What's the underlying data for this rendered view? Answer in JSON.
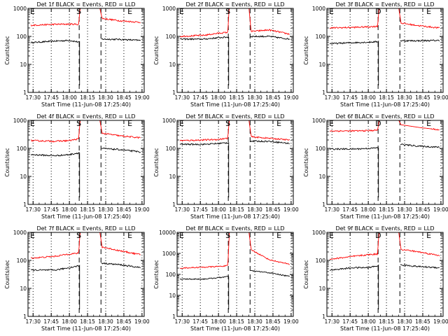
{
  "figure": {
    "ylabel": "Counts/sec",
    "xlabel": "Start Time (11-Jun-08 17:25:40)",
    "x_tick_labels": [
      "17:30",
      "17:45",
      "18:00",
      "18:15",
      "18:30",
      "18:45",
      "19:00"
    ],
    "series_colors": {
      "events": "#000000",
      "lld": "#ff0000"
    }
  },
  "chart_data": [
    {
      "type": "line",
      "title": "Det 1f BLACK = Events, RED = LLD",
      "ylim": [
        1,
        1000
      ],
      "yscale": "log",
      "y_tick_labels": [
        "1",
        "10",
        "100",
        "1000"
      ],
      "markers": {
        "E1": "E",
        "S": "S",
        "E2": "E"
      },
      "series": [
        {
          "name": "Events",
          "pre": [
            [
              17.47,
              60
            ],
            [
              17.8,
              68
            ],
            [
              18.0,
              72
            ],
            [
              18.14,
              62
            ]
          ],
          "post": [
            [
              18.44,
              80
            ],
            [
              18.7,
              78
            ],
            [
              18.98,
              72
            ]
          ]
        },
        {
          "name": "LLD",
          "pre": [
            [
              17.47,
              250
            ],
            [
              17.8,
              270
            ],
            [
              18.0,
              275
            ],
            [
              18.13,
              270
            ],
            [
              18.14,
              700
            ],
            [
              18.15,
              1000
            ]
          ],
          "post": [
            [
              18.42,
              1000
            ],
            [
              18.45,
              440
            ],
            [
              18.7,
              360
            ],
            [
              18.98,
              320
            ]
          ]
        }
      ]
    },
    {
      "type": "line",
      "title": "Det 2f BLACK = Events, RED = LLD",
      "ylim": [
        1,
        1000
      ],
      "yscale": "log",
      "y_tick_labels": [
        "1",
        "10",
        "100",
        "1000"
      ],
      "markers": {
        "E1": "E",
        "S": "S",
        "E2": "E"
      },
      "series": [
        {
          "name": "Events",
          "pre": [
            [
              17.47,
              80
            ],
            [
              17.8,
              80
            ],
            [
              18.0,
              90
            ],
            [
              18.14,
              95
            ]
          ],
          "post": [
            [
              18.44,
              100
            ],
            [
              18.7,
              100
            ],
            [
              18.98,
              80
            ]
          ]
        },
        {
          "name": "LLD",
          "pre": [
            [
              17.47,
              100
            ],
            [
              17.8,
              110
            ],
            [
              18.0,
              130
            ],
            [
              18.13,
              140
            ],
            [
              18.14,
              600
            ],
            [
              18.15,
              1000
            ]
          ],
          "post": [
            [
              18.42,
              1000
            ],
            [
              18.45,
              150
            ],
            [
              18.7,
              170
            ],
            [
              18.98,
              120
            ]
          ]
        }
      ]
    },
    {
      "type": "line",
      "title": "Det 3f BLACK = Events, RED = LLD",
      "ylim": [
        1,
        1000
      ],
      "yscale": "log",
      "y_tick_labels": [
        "1",
        "10",
        "100",
        "1000"
      ],
      "markers": {
        "E1": "E",
        "S": "D",
        "E2": "E"
      },
      "series": [
        {
          "name": "Events",
          "pre": [
            [
              17.47,
              55
            ],
            [
              17.8,
              60
            ],
            [
              18.0,
              62
            ],
            [
              18.14,
              65
            ]
          ],
          "post": [
            [
              18.44,
              70
            ],
            [
              18.7,
              70
            ],
            [
              18.98,
              72
            ]
          ]
        },
        {
          "name": "LLD",
          "pre": [
            [
              17.47,
              200
            ],
            [
              17.8,
              210
            ],
            [
              18.0,
              220
            ],
            [
              18.13,
              230
            ],
            [
              18.14,
              600
            ],
            [
              18.15,
              1000
            ]
          ],
          "post": [
            [
              18.42,
              1000
            ],
            [
              18.45,
              300
            ],
            [
              18.7,
              240
            ],
            [
              18.98,
              200
            ]
          ]
        }
      ]
    },
    {
      "type": "line",
      "title": "Det 4f BLACK = Events, RED = LLD",
      "ylim": [
        1,
        1000
      ],
      "yscale": "log",
      "y_tick_labels": [
        "1",
        "10",
        "100",
        "1000"
      ],
      "markers": {
        "E1": "E",
        "S": "S",
        "E2": "E"
      },
      "series": [
        {
          "name": "Events",
          "pre": [
            [
              17.47,
              60
            ],
            [
              17.8,
              55
            ],
            [
              18.0,
              60
            ],
            [
              18.14,
              70
            ]
          ],
          "post": [
            [
              18.44,
              100
            ],
            [
              18.7,
              90
            ],
            [
              18.98,
              75
            ]
          ]
        },
        {
          "name": "LLD",
          "pre": [
            [
              17.47,
              190
            ],
            [
              17.8,
              180
            ],
            [
              18.0,
              190
            ],
            [
              18.13,
              220
            ],
            [
              18.14,
              600
            ],
            [
              18.15,
              1000
            ]
          ],
          "post": [
            [
              18.42,
              1000
            ],
            [
              18.45,
              350
            ],
            [
              18.7,
              280
            ],
            [
              18.98,
              240
            ]
          ]
        }
      ]
    },
    {
      "type": "line",
      "title": "Det 5f BLACK = Events, RED = LLD",
      "ylim": [
        1,
        1000
      ],
      "yscale": "log",
      "y_tick_labels": [
        "1",
        "10",
        "100",
        "1000"
      ],
      "markers": {
        "E1": "E",
        "S": "S",
        "E2": "E"
      },
      "series": [
        {
          "name": "Events",
          "pre": [
            [
              17.47,
              140
            ],
            [
              17.8,
              140
            ],
            [
              18.0,
              150
            ],
            [
              18.14,
              160
            ]
          ],
          "post": [
            [
              18.44,
              180
            ],
            [
              18.7,
              180
            ],
            [
              18.98,
              150
            ]
          ]
        },
        {
          "name": "LLD",
          "pre": [
            [
              17.47,
              190
            ],
            [
              17.8,
              200
            ],
            [
              18.0,
              210
            ],
            [
              18.13,
              230
            ],
            [
              18.14,
              600
            ],
            [
              18.15,
              1000
            ]
          ],
          "post": [
            [
              18.42,
              1000
            ],
            [
              18.45,
              260
            ],
            [
              18.7,
              230
            ],
            [
              18.98,
              200
            ]
          ]
        }
      ]
    },
    {
      "type": "line",
      "title": "Det 6f BLACK = Events, RED = LLD",
      "ylim": [
        1,
        1000
      ],
      "yscale": "log",
      "y_tick_labels": [
        "1",
        "10",
        "100",
        "1000"
      ],
      "markers": {
        "E1": "E",
        "S": "D",
        "E2": "E"
      },
      "series": [
        {
          "name": "Events",
          "pre": [
            [
              17.47,
              95
            ],
            [
              17.8,
              95
            ],
            [
              18.0,
              100
            ],
            [
              18.14,
              105
            ]
          ],
          "post": [
            [
              18.44,
              140
            ],
            [
              18.7,
              120
            ],
            [
              18.98,
              110
            ]
          ]
        },
        {
          "name": "LLD",
          "pre": [
            [
              17.47,
              420
            ],
            [
              17.8,
              420
            ],
            [
              18.0,
              430
            ],
            [
              18.13,
              450
            ],
            [
              18.14,
              700
            ],
            [
              18.15,
              1000
            ]
          ],
          "post": [
            [
              18.42,
              1000
            ],
            [
              18.45,
              700
            ],
            [
              18.7,
              560
            ],
            [
              18.98,
              460
            ]
          ]
        }
      ]
    },
    {
      "type": "line",
      "title": "Det 7f BLACK = Events, RED = LLD",
      "ylim": [
        1,
        1000
      ],
      "yscale": "log",
      "y_tick_labels": [
        "1",
        "10",
        "100",
        "1000"
      ],
      "markers": {
        "E1": "E",
        "S": "S",
        "E2": "E"
      },
      "series": [
        {
          "name": "Events",
          "pre": [
            [
              17.47,
              45
            ],
            [
              17.8,
              45
            ],
            [
              18.0,
              55
            ],
            [
              18.14,
              65
            ]
          ],
          "post": [
            [
              18.44,
              80
            ],
            [
              18.7,
              70
            ],
            [
              18.98,
              55
            ]
          ]
        },
        {
          "name": "LLD",
          "pre": [
            [
              17.47,
              120
            ],
            [
              17.8,
              140
            ],
            [
              18.0,
              170
            ],
            [
              18.13,
              180
            ],
            [
              18.14,
              600
            ],
            [
              18.15,
              1000
            ]
          ],
          "post": [
            [
              18.42,
              1000
            ],
            [
              18.45,
              300
            ],
            [
              18.7,
              220
            ],
            [
              18.98,
              160
            ]
          ]
        }
      ]
    },
    {
      "type": "line",
      "title": "Det 8f BLACK = Events, RED = LLD",
      "ylim": [
        1,
        10000
      ],
      "yscale": "log",
      "y_tick_labels": [
        "1",
        "10",
        "100",
        "1000",
        "10000"
      ],
      "markers": {
        "E1": "E",
        "S": "S",
        "E2": "E"
      },
      "series": [
        {
          "name": "Events",
          "pre": [
            [
              17.47,
              60
            ],
            [
              17.8,
              60
            ],
            [
              18.0,
              70
            ],
            [
              18.14,
              80
            ]
          ],
          "post": [
            [
              18.44,
              150
            ],
            [
              18.7,
              120
            ],
            [
              18.98,
              80
            ]
          ]
        },
        {
          "name": "LLD",
          "pre": [
            [
              17.47,
              200
            ],
            [
              17.8,
              220
            ],
            [
              18.0,
              240
            ],
            [
              18.13,
              260
            ],
            [
              18.14,
              2000
            ],
            [
              18.15,
              10000
            ]
          ],
          "post": [
            [
              18.42,
              10000
            ],
            [
              18.45,
              1500
            ],
            [
              18.7,
              500
            ],
            [
              18.98,
              300
            ]
          ]
        }
      ]
    },
    {
      "type": "line",
      "title": "Det 9f BLACK = Events, RED = LLD",
      "ylim": [
        1,
        1000
      ],
      "yscale": "log",
      "y_tick_labels": [
        "1",
        "10",
        "100",
        "1000"
      ],
      "markers": {
        "E1": "E",
        "S": "D",
        "E2": "E"
      },
      "series": [
        {
          "name": "Events",
          "pre": [
            [
              17.47,
              45
            ],
            [
              17.8,
              55
            ],
            [
              18.0,
              55
            ],
            [
              18.14,
              65
            ]
          ],
          "post": [
            [
              18.44,
              70
            ],
            [
              18.7,
              60
            ],
            [
              18.98,
              55
            ]
          ]
        },
        {
          "name": "LLD",
          "pre": [
            [
              17.47,
              110
            ],
            [
              17.8,
              140
            ],
            [
              18.0,
              160
            ],
            [
              18.13,
              170
            ],
            [
              18.14,
              600
            ],
            [
              18.15,
              1000
            ]
          ],
          "post": [
            [
              18.42,
              1000
            ],
            [
              18.45,
              250
            ],
            [
              18.7,
              200
            ],
            [
              18.98,
              150
            ]
          ]
        }
      ]
    }
  ]
}
